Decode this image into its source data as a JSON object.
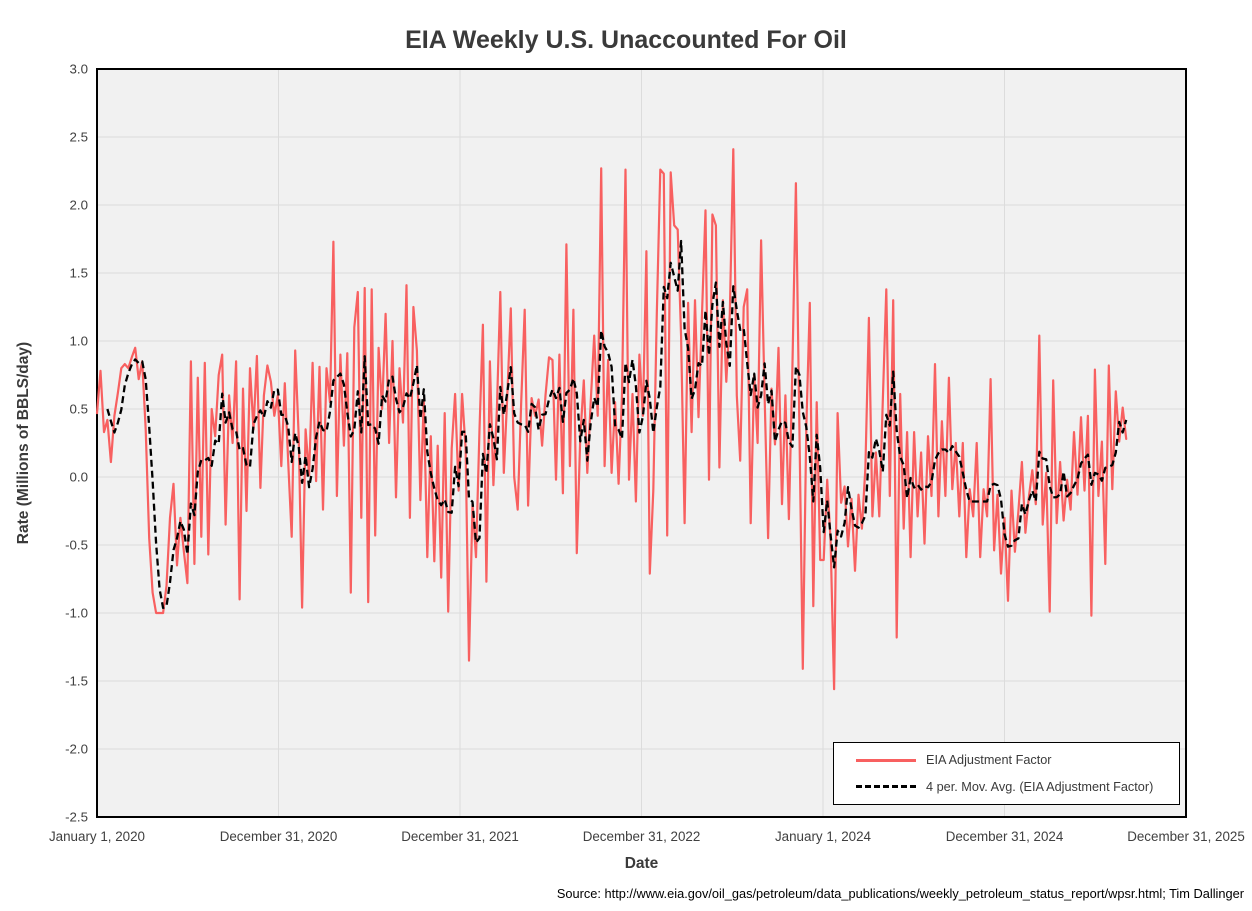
{
  "page_background": "#FFFFFF",
  "chart_data": {
    "type": "line",
    "title": "EIA Weekly U.S. Unaccounted For Oil",
    "xlabel": "Date",
    "ylabel": "Rate (Millions of BBLS/day)",
    "source_note": "Source: http://www.eia.gov/oil_gas/petroleum/data_publications/weekly_petroleum_status_report/wpsr.html; Tim Dallinger",
    "legend_position": "bottom-right-inside",
    "grid": true,
    "plot_colors": {
      "background": "#F1F1F1",
      "gridline": "#DCDCDC",
      "border": "#000000"
    },
    "x_axis": {
      "tick_labels": [
        "January 1, 2020",
        "December 31, 2020",
        "December 31, 2021",
        "December 31, 2022",
        "January 1, 2024",
        "December 31, 2024",
        "December 31, 2025"
      ],
      "interval": "1 year",
      "data_frequency": "weekly"
    },
    "y_axis": {
      "tick_labels": [
        "3.0",
        "2.5",
        "2.0",
        "1.5",
        "1.0",
        "0.5",
        "0.0",
        "-0.5",
        "-1.0",
        "-1.5",
        "-2.0",
        "-2.5"
      ],
      "min": -2.5,
      "max": 3.0
    },
    "series": [
      {
        "name": "EIA Adjustment Factor",
        "color": "#F86060",
        "style": "solid",
        "unit": "Millions of BBLS/day",
        "start": "week of January 3, 2020",
        "values": [
          0.47,
          0.78,
          0.33,
          0.42,
          0.11,
          0.45,
          0.62,
          0.8,
          0.83,
          0.8,
          0.88,
          0.95,
          0.72,
          0.85,
          0.35,
          -0.45,
          -0.85,
          -1.0,
          -1.0,
          -1.0,
          -0.8,
          -0.3,
          -0.05,
          -0.65,
          -0.3,
          -0.55,
          -0.78,
          0.85,
          -0.64,
          0.73,
          -0.44,
          0.84,
          -0.57,
          0.5,
          0.3,
          0.75,
          0.9,
          -0.35,
          0.6,
          0.25,
          0.85,
          -0.9,
          0.65,
          -0.25,
          0.8,
          0.35,
          0.89,
          -0.08,
          0.6,
          0.82,
          0.7,
          0.45,
          0.6,
          0.08,
          0.69,
          0.11,
          -0.44,
          0.93,
          0.3,
          -0.96,
          0.35,
          0.01,
          0.84,
          -0.03,
          0.81,
          -0.24,
          0.8,
          0.55,
          1.73,
          -0.14,
          0.9,
          0.23,
          0.91,
          -0.85,
          1.1,
          1.36,
          -0.3,
          1.39,
          -0.92,
          1.38,
          -0.43,
          0.95,
          0.5,
          1.2,
          0.25,
          1.0,
          -0.15,
          0.8,
          0.4,
          1.41,
          -0.3,
          1.25,
          0.93,
          -0.17,
          0.57,
          -0.59,
          0.3,
          -0.62,
          0.23,
          -0.74,
          0.47,
          -0.99,
          0.21,
          0.61,
          -0.1,
          0.61,
          0.21,
          -1.35,
          -0.2,
          -0.59,
          0.35,
          1.12,
          -0.77,
          0.85,
          -0.06,
          0.5,
          1.36,
          0.03,
          0.6,
          1.24,
          0.0,
          -0.24,
          0.55,
          1.23,
          -0.21,
          0.58,
          0.45,
          0.57,
          0.23,
          0.6,
          0.88,
          0.86,
          -0.02,
          0.9,
          -0.12,
          1.71,
          0.08,
          1.23,
          -0.56,
          0.3,
          0.71,
          0.03,
          0.55,
          1.04,
          0.45,
          2.27,
          0.08,
          0.86,
          0.03,
          0.55,
          -0.05,
          0.6,
          2.26,
          -0.02,
          0.61,
          -0.18,
          0.9,
          0.45,
          1.66,
          -0.71,
          -0.1,
          1.2,
          2.26,
          2.23,
          -0.43,
          2.24,
          1.85,
          1.82,
          1.03,
          -0.34,
          1.28,
          0.33,
          1.3,
          0.44,
          1.2,
          1.96,
          -0.02,
          1.93,
          1.85,
          0.07,
          1.3,
          0.7,
          1.2,
          2.41,
          0.6,
          0.12,
          1.25,
          1.38,
          -0.34,
          0.75,
          0.25,
          1.74,
          0.6,
          -0.45,
          0.65,
          0.24,
          0.95,
          -0.2,
          0.6,
          -0.31,
          0.8,
          2.16,
          0.36,
          -1.41,
          0.36,
          1.28,
          -0.95,
          0.55,
          -0.61,
          -0.61,
          -0.02,
          -0.47,
          -1.56,
          0.47,
          -0.19,
          -0.07,
          -0.51,
          -0.16,
          -0.69,
          -0.13,
          -0.38,
          0.07,
          1.17,
          -0.29,
          0.18,
          -0.29,
          0.56,
          1.38,
          -0.14,
          1.3,
          -1.18,
          0.61,
          -0.38,
          0.33,
          -0.59,
          0.33,
          -0.29,
          0.18,
          -0.49,
          0.3,
          -0.14,
          0.83,
          -0.29,
          0.41,
          -0.14,
          0.73,
          -0.09,
          0.25,
          -0.29,
          0.25,
          -0.59,
          -0.09,
          -0.29,
          0.25,
          -0.59,
          -0.09,
          -0.29,
          0.72,
          -0.54,
          -0.13,
          -0.71,
          -0.3,
          -0.91,
          -0.1,
          -0.55,
          -0.25,
          0.11,
          -0.41,
          -0.15,
          0.05,
          -0.2,
          1.04,
          -0.35,
          0.03,
          -0.99,
          0.71,
          -0.34,
          0.11,
          -0.32,
          -0.02,
          -0.24,
          0.33,
          -0.13,
          0.44,
          -0.1,
          0.45,
          -1.02,
          0.79,
          -0.14,
          0.26,
          -0.64,
          0.82,
          -0.09,
          0.63,
          0.26,
          0.51,
          0.28
        ]
      },
      {
        "name": "4 per. Mov. Avg. (EIA Adjustment Factor)",
        "color": "#000000",
        "style": "dashed",
        "derived_from": "4-period moving average of EIA Adjustment Factor"
      }
    ]
  }
}
